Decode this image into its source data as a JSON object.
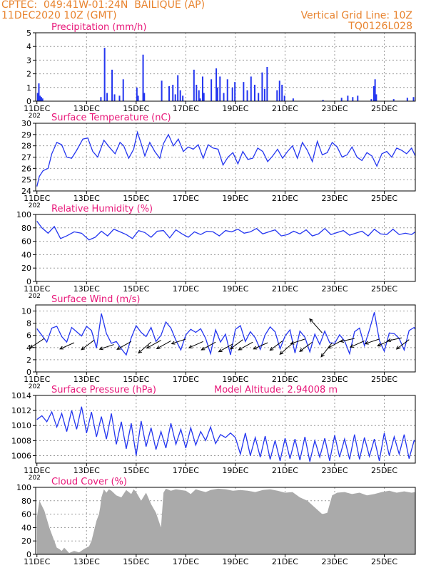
{
  "header": {
    "line1": "CPTEC:  049:41W-01:24N  BAILIQUE (AP)",
    "line2": "11DEC2020 10Z (GMT)",
    "grid_note": "Vertical Grid Line: 10Z",
    "code": "TQ0126L028"
  },
  "colors": {
    "header_text": "#e8832e",
    "panel_title": "#e8197a",
    "series_line": "#2436f0",
    "cloud_fill": "#aaaaaa",
    "grid": "#9a9a9a"
  },
  "x_axis": {
    "tick_labels": [
      "11DEC",
      "13DEC",
      "15DEC",
      "17DEC",
      "19DEC",
      "21DEC",
      "23DEC",
      "25DEC"
    ],
    "tick_days": [
      0,
      2,
      4,
      6,
      8,
      10,
      12,
      14
    ],
    "range_days": [
      -0.05,
      15.25
    ],
    "clipped_year_label": "202"
  },
  "chart_data": [
    {
      "id": "precip",
      "type": "bar",
      "title": "Precipitation  (mm/h)",
      "ylim": [
        0,
        5
      ],
      "yticks": [
        0,
        1,
        2,
        3,
        4,
        5
      ],
      "grid": true,
      "bars": [
        [
          0.0,
          0.6
        ],
        [
          0.05,
          1.3
        ],
        [
          0.1,
          0.4
        ],
        [
          0.15,
          0.3
        ],
        [
          0.2,
          0.2
        ],
        [
          2.55,
          0.3
        ],
        [
          2.7,
          3.9
        ],
        [
          2.8,
          0.6
        ],
        [
          3.0,
          2.3
        ],
        [
          3.1,
          0.5
        ],
        [
          3.3,
          0.4
        ],
        [
          3.45,
          1.6
        ],
        [
          4.0,
          1.0
        ],
        [
          4.05,
          0.4
        ],
        [
          4.25,
          3.4
        ],
        [
          4.3,
          0.6
        ],
        [
          5.0,
          1.5
        ],
        [
          5.3,
          1.1
        ],
        [
          5.45,
          1.2
        ],
        [
          5.55,
          0.5
        ],
        [
          5.65,
          1.9
        ],
        [
          5.75,
          0.8
        ],
        [
          5.85,
          0.4
        ],
        [
          6.3,
          2.3
        ],
        [
          6.4,
          1.2
        ],
        [
          6.5,
          0.8
        ],
        [
          6.55,
          0.2
        ],
        [
          6.65,
          1.8
        ],
        [
          6.7,
          0.6
        ],
        [
          7.0,
          1.6
        ],
        [
          7.2,
          2.4
        ],
        [
          7.25,
          1.0
        ],
        [
          7.35,
          1.8
        ],
        [
          7.5,
          0.6
        ],
        [
          7.65,
          1.6
        ],
        [
          7.85,
          1.0
        ],
        [
          7.95,
          1.4
        ],
        [
          8.3,
          1.4
        ],
        [
          8.45,
          0.8
        ],
        [
          8.6,
          1.8
        ],
        [
          8.75,
          1.2
        ],
        [
          8.9,
          0.6
        ],
        [
          9.05,
          2.1
        ],
        [
          9.15,
          0.9
        ],
        [
          9.25,
          2.5
        ],
        [
          9.65,
          0.8
        ],
        [
          9.75,
          1.5
        ],
        [
          9.85,
          1.2
        ],
        [
          9.95,
          0.4
        ],
        [
          10.3,
          0.2
        ],
        [
          11.5,
          0.1
        ],
        [
          12.25,
          0.25
        ],
        [
          12.5,
          0.4
        ],
        [
          12.7,
          0.3
        ],
        [
          12.9,
          0.4
        ],
        [
          13.45,
          0.15
        ],
        [
          13.55,
          1.1
        ],
        [
          13.6,
          1.6
        ],
        [
          13.65,
          0.5
        ],
        [
          14.35,
          0.15
        ],
        [
          14.9,
          0.25
        ],
        [
          15.15,
          0.3
        ]
      ]
    },
    {
      "id": "temp",
      "type": "line",
      "title": "Surface Temperature (nC)",
      "ylim": [
        24,
        30
      ],
      "yticks": [
        24,
        25,
        26,
        27,
        28,
        29,
        30
      ],
      "grid": true,
      "x": [
        0,
        0.1,
        0.25,
        0.45,
        0.6,
        0.8,
        1.0,
        1.2,
        1.4,
        1.6,
        1.85,
        2.05,
        2.25,
        2.45,
        2.7,
        2.95,
        3.15,
        3.35,
        3.5,
        3.7,
        3.9,
        4.05,
        4.2,
        4.35,
        4.55,
        4.75,
        4.95,
        5.1,
        5.3,
        5.5,
        5.7,
        5.9,
        6.1,
        6.3,
        6.5,
        6.7,
        6.9,
        7.1,
        7.3,
        7.5,
        7.7,
        7.9,
        8.1,
        8.3,
        8.5,
        8.7,
        8.9,
        9.1,
        9.3,
        9.5,
        9.7,
        9.9,
        10.1,
        10.3,
        10.5,
        10.7,
        10.9,
        11.1,
        11.3,
        11.5,
        11.7,
        11.9,
        12.1,
        12.3,
        12.5,
        12.7,
        12.9,
        13.1,
        13.3,
        13.5,
        13.7,
        13.9,
        14.1,
        14.3,
        14.5,
        14.7,
        14.9,
        15.1,
        15.25
      ],
      "y": [
        24.4,
        25.3,
        25.8,
        26.0,
        27.3,
        28.3,
        28.1,
        27.0,
        26.9,
        27.6,
        28.6,
        28.7,
        27.5,
        27.0,
        28.5,
        27.8,
        27.3,
        28.3,
        28.0,
        26.9,
        27.7,
        29.2,
        28.2,
        27.1,
        28.3,
        27.5,
        26.9,
        28.2,
        29.0,
        28.0,
        28.6,
        27.5,
        27.9,
        27.7,
        28.1,
        26.9,
        28.1,
        27.8,
        27.7,
        26.3,
        27.0,
        27.4,
        26.4,
        27.5,
        26.8,
        26.9,
        27.8,
        27.5,
        26.6,
        27.1,
        27.7,
        26.9,
        27.5,
        28.0,
        26.9,
        28.3,
        27.6,
        26.6,
        28.4,
        27.2,
        27.4,
        28.3,
        27.9,
        27.0,
        27.2,
        27.9,
        27.0,
        26.7,
        27.4,
        27.1,
        26.2,
        27.3,
        27.5,
        27.0,
        27.8,
        27.6,
        27.3,
        27.8,
        27.1
      ]
    },
    {
      "id": "rh",
      "type": "line",
      "title": "Relative Humidity (%)",
      "ylim": [
        0,
        100
      ],
      "yticks": [
        0,
        20,
        40,
        60,
        80,
        100
      ],
      "grid": true,
      "x": [
        0,
        0.2,
        0.45,
        0.7,
        0.95,
        1.2,
        1.5,
        1.8,
        2.1,
        2.35,
        2.6,
        2.85,
        3.1,
        3.35,
        3.6,
        3.85,
        4.1,
        4.35,
        4.6,
        4.85,
        5.1,
        5.35,
        5.6,
        5.85,
        6.1,
        6.35,
        6.6,
        6.85,
        7.1,
        7.35,
        7.6,
        7.85,
        8.1,
        8.35,
        8.6,
        8.85,
        9.1,
        9.35,
        9.6,
        9.85,
        10.1,
        10.35,
        10.6,
        10.85,
        11.1,
        11.35,
        11.6,
        11.85,
        12.1,
        12.35,
        12.6,
        12.85,
        13.1,
        13.35,
        13.6,
        13.85,
        14.1,
        14.35,
        14.6,
        14.85,
        15.1,
        15.25
      ],
      "y": [
        90,
        80,
        72,
        82,
        64,
        68,
        74,
        72,
        62,
        66,
        75,
        68,
        78,
        74,
        70,
        64,
        76,
        73,
        66,
        75,
        76,
        65,
        77,
        71,
        66,
        74,
        70,
        75,
        74,
        68,
        76,
        74,
        78,
        72,
        74,
        79,
        71,
        74,
        77,
        68,
        70,
        75,
        71,
        77,
        68,
        71,
        79,
        70,
        73,
        76,
        69,
        72,
        75,
        68,
        78,
        71,
        70,
        78,
        70,
        72,
        70,
        74
      ]
    },
    {
      "id": "wind",
      "type": "line",
      "title": "Surface Wind (m/s)",
      "ylim": [
        0,
        11
      ],
      "yticks": [
        0,
        2,
        4,
        6,
        8,
        10
      ],
      "grid": true,
      "x": [
        0,
        0.2,
        0.4,
        0.6,
        0.8,
        1.0,
        1.2,
        1.4,
        1.6,
        1.8,
        2.0,
        2.2,
        2.4,
        2.6,
        2.8,
        3.0,
        3.2,
        3.4,
        3.6,
        3.8,
        4.0,
        4.2,
        4.4,
        4.6,
        4.8,
        5.0,
        5.2,
        5.4,
        5.6,
        5.8,
        6.0,
        6.2,
        6.4,
        6.6,
        6.8,
        7.0,
        7.2,
        7.4,
        7.6,
        7.8,
        8.0,
        8.2,
        8.4,
        8.6,
        8.8,
        9.0,
        9.2,
        9.4,
        9.6,
        9.8,
        10.0,
        10.2,
        10.4,
        10.6,
        10.8,
        11.0,
        11.2,
        11.4,
        11.6,
        11.8,
        12.0,
        12.2,
        12.4,
        12.6,
        12.8,
        13.0,
        13.2,
        13.4,
        13.6,
        13.8,
        14.0,
        14.2,
        14.4,
        14.6,
        14.8,
        15.0,
        15.2,
        15.25
      ],
      "y": [
        7.1,
        6.0,
        4.9,
        7.2,
        7.5,
        5.8,
        4.9,
        7.3,
        6.6,
        5.9,
        7.5,
        6.8,
        3.9,
        9.6,
        6.3,
        4.7,
        5.0,
        3.8,
        2.8,
        5.6,
        7.6,
        6.5,
        5.8,
        7.3,
        5.0,
        6.0,
        8.2,
        7.2,
        5.2,
        3.6,
        6.1,
        7.0,
        6.5,
        7.1,
        5.5,
        3.0,
        6.9,
        4.9,
        6.2,
        2.8,
        7.0,
        7.6,
        5.0,
        6.6,
        5.6,
        3.7,
        6.1,
        7.4,
        6.6,
        3.8,
        5.9,
        6.9,
        3.1,
        6.7,
        5.7,
        3.3,
        6.2,
        4.5,
        6.7,
        4.8,
        4.7,
        6.1,
        5.1,
        3.0,
        6.6,
        7.2,
        4.3,
        6.9,
        9.8,
        5.2,
        3.4,
        6.4,
        6.3,
        5.5,
        3.6,
        6.8,
        7.3,
        7.0
      ],
      "arrows": [
        [
          0.3,
          5.5,
          -0.9,
          -0.6
        ],
        [
          1.5,
          4.8,
          -0.9,
          -0.4
        ],
        [
          2.3,
          5.2,
          -0.8,
          -0.6
        ],
        [
          3.1,
          4.5,
          -0.9,
          -0.3
        ],
        [
          3.8,
          5.0,
          -0.9,
          -0.5
        ],
        [
          4.6,
          4.9,
          -0.8,
          -0.7
        ],
        [
          5.0,
          5.2,
          -0.9,
          -0.5
        ],
        [
          5.4,
          5.1,
          -0.9,
          -0.5
        ],
        [
          6.0,
          5.4,
          -0.9,
          -0.3
        ],
        [
          6.7,
          5.0,
          -0.9,
          -0.4
        ],
        [
          7.2,
          4.9,
          -0.9,
          -0.5
        ],
        [
          7.9,
          4.6,
          -0.9,
          -0.5
        ],
        [
          8.3,
          5.3,
          -0.8,
          -0.6
        ],
        [
          8.7,
          4.9,
          -0.9,
          -0.5
        ],
        [
          9.3,
          4.8,
          -0.9,
          -0.4
        ],
        [
          9.9,
          5.1,
          -0.8,
          -0.6
        ],
        [
          10.3,
          4.7,
          -0.8,
          -0.7
        ],
        [
          10.8,
          5.4,
          -0.9,
          -0.3
        ],
        [
          11.1,
          4.9,
          -0.8,
          -0.6
        ],
        [
          11.5,
          6.4,
          -0.8,
          0.9
        ],
        [
          11.9,
          4.8,
          -0.7,
          -0.9
        ],
        [
          12.3,
          5.2,
          -0.9,
          -0.5
        ],
        [
          12.8,
          5.5,
          -0.9,
          -0.2
        ],
        [
          13.2,
          5.1,
          -0.9,
          -0.4
        ],
        [
          13.8,
          5.4,
          -0.9,
          -0.3
        ],
        [
          14.3,
          5.3,
          -0.9,
          -0.4
        ],
        [
          14.7,
          5.6,
          -0.9,
          -0.2
        ],
        [
          15.0,
          5.3,
          -0.8,
          -0.6
        ]
      ]
    },
    {
      "id": "pressure",
      "type": "line",
      "title": "Surface Pressure (hPa)",
      "annotation": "Model Altitude: 2.94008  m",
      "ylim": [
        1005,
        1014
      ],
      "yticks": [
        1006,
        1008,
        1010,
        1012,
        1014
      ],
      "grid": true,
      "x": [
        0,
        0.2,
        0.4,
        0.6,
        0.8,
        1.0,
        1.2,
        1.4,
        1.6,
        1.8,
        2.0,
        2.2,
        2.4,
        2.6,
        2.8,
        3.0,
        3.2,
        3.4,
        3.6,
        3.8,
        4.0,
        4.2,
        4.4,
        4.6,
        4.8,
        5.0,
        5.2,
        5.4,
        5.6,
        5.8,
        6.0,
        6.2,
        6.4,
        6.6,
        6.8,
        7.0,
        7.2,
        7.4,
        7.6,
        7.8,
        8.0,
        8.2,
        8.4,
        8.6,
        8.8,
        9.0,
        9.2,
        9.4,
        9.6,
        9.8,
        10.0,
        10.2,
        10.4,
        10.6,
        10.8,
        11.0,
        11.2,
        11.4,
        11.6,
        11.8,
        12.0,
        12.2,
        12.4,
        12.6,
        12.8,
        13.0,
        13.2,
        13.4,
        13.6,
        13.8,
        14.0,
        14.2,
        14.4,
        14.6,
        14.8,
        15.0,
        15.2,
        15.25
      ],
      "y": [
        1010.8,
        1011.3,
        1010.5,
        1011.8,
        1009.8,
        1011.6,
        1009.2,
        1012.0,
        1009.5,
        1012.5,
        1009.0,
        1011.8,
        1008.5,
        1011.2,
        1008.2,
        1011.6,
        1007.5,
        1010.5,
        1006.9,
        1010.3,
        1006.0,
        1010.6,
        1007.2,
        1009.7,
        1006.8,
        1009.2,
        1007.0,
        1010.3,
        1007.5,
        1009.5,
        1007.0,
        1009.7,
        1007.4,
        1009.2,
        1008.0,
        1009.8,
        1007.6,
        1008.8,
        1008.4,
        1009.0,
        1008.4,
        1006.2,
        1009.0,
        1006.0,
        1008.4,
        1005.8,
        1008.6,
        1005.5,
        1008.0,
        1005.3,
        1008.3,
        1005.6,
        1008.2,
        1005.4,
        1008.5,
        1005.2,
        1008.0,
        1005.8,
        1008.3,
        1005.3,
        1008.7,
        1005.8,
        1008.2,
        1005.5,
        1008.8,
        1005.5,
        1008.4,
        1005.9,
        1008.2,
        1005.3,
        1009.0,
        1006.0,
        1008.5,
        1006.2,
        1008.8,
        1005.6,
        1008.0,
        1007.9
      ]
    },
    {
      "id": "cloud",
      "type": "area",
      "title": "Cloud Cover (%)",
      "ylim": [
        0,
        100
      ],
      "yticks": [
        0,
        20,
        40,
        60,
        80,
        100
      ],
      "grid": true,
      "x": [
        0,
        0.1,
        0.3,
        0.5,
        0.7,
        0.8,
        0.9,
        1.0,
        1.1,
        1.3,
        1.5,
        1.7,
        1.9,
        2.1,
        2.2,
        2.3,
        2.4,
        2.5,
        2.55,
        2.6,
        2.7,
        2.8,
        2.9,
        3.0,
        3.2,
        3.4,
        3.6,
        3.8,
        3.9,
        4.0,
        4.2,
        4.4,
        4.6,
        4.8,
        5.0,
        5.1,
        5.2,
        5.4,
        5.6,
        5.8,
        6.0,
        6.2,
        6.4,
        6.6,
        6.8,
        7.0,
        7.3,
        7.6,
        7.9,
        8.2,
        8.5,
        8.8,
        9.1,
        9.4,
        9.7,
        10.0,
        10.3,
        10.6,
        10.9,
        11.2,
        11.5,
        11.7,
        11.9,
        12.1,
        12.4,
        12.7,
        13.0,
        13.3,
        13.6,
        13.9,
        14.2,
        14.5,
        14.8,
        15.1,
        15.25
      ],
      "y": [
        55,
        80,
        65,
        40,
        20,
        10,
        8,
        5,
        10,
        2,
        5,
        3,
        8,
        12,
        20,
        35,
        50,
        60,
        70,
        85,
        97,
        92,
        97,
        95,
        88,
        85,
        96,
        90,
        97,
        93,
        80,
        92,
        75,
        62,
        40,
        92,
        98,
        95,
        97,
        96,
        95,
        90,
        97,
        95,
        93,
        96,
        98,
        97,
        95,
        96,
        95,
        93,
        96,
        97,
        95,
        92,
        93,
        85,
        80,
        70,
        60,
        62,
        88,
        92,
        93,
        90,
        92,
        88,
        90,
        93,
        95,
        92,
        94,
        92,
        93
      ]
    }
  ]
}
